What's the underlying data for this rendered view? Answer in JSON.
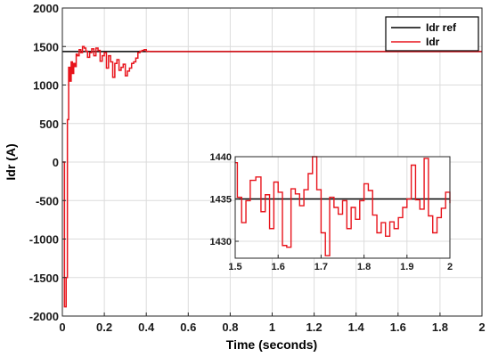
{
  "chart_data": {
    "type": "line",
    "xlabel": "Time (seconds)",
    "ylabel": "Idr (A)",
    "xlim": [
      0,
      2
    ],
    "ylim": [
      -2000,
      2000
    ],
    "xticks": [
      0,
      0.2,
      0.4,
      0.6,
      0.8,
      1,
      1.2,
      1.4,
      1.6,
      1.8,
      2
    ],
    "xtick_labels": [
      "0",
      "0.2",
      "0.4",
      "0.6",
      "0.8",
      "1",
      "1.2",
      "1.4",
      "1.6",
      "1.8",
      "2"
    ],
    "yticks": [
      -2000,
      -1500,
      -1000,
      -500,
      0,
      500,
      1000,
      1500,
      2000
    ],
    "ytick_labels": [
      "-2000",
      "-1500",
      "-1000",
      "-500",
      "0",
      "500",
      "1000",
      "1500",
      "2000"
    ],
    "grid": true,
    "legend": "top-right",
    "series": [
      {
        "name": "Idr ref",
        "color": "#000000",
        "x": [
          0,
          2
        ],
        "y": [
          1435,
          1435
        ]
      },
      {
        "name": "Idr",
        "color": "#e8141c",
        "step": true,
        "x": [
          0,
          0.01,
          0.018,
          0.024,
          0.03,
          0.036,
          0.042,
          0.048,
          0.054,
          0.06,
          0.066,
          0.072,
          0.08,
          0.088,
          0.096,
          0.104,
          0.112,
          0.12,
          0.13,
          0.14,
          0.15,
          0.16,
          0.17,
          0.18,
          0.19,
          0.2,
          0.21,
          0.22,
          0.23,
          0.24,
          0.25,
          0.26,
          0.27,
          0.28,
          0.29,
          0.3,
          0.31,
          0.32,
          0.33,
          0.34,
          0.35,
          0.36,
          0.37,
          0.38,
          0.39,
          0.4,
          0.41,
          0.42,
          2
        ],
        "y": [
          0,
          -1880,
          -1500,
          550,
          1230,
          1050,
          1300,
          1150,
          1280,
          1240,
          1400,
          1380,
          1460,
          1420,
          1500,
          1480,
          1440,
          1360,
          1420,
          1470,
          1380,
          1480,
          1450,
          1310,
          1380,
          1420,
          1220,
          1380,
          1300,
          1100,
          1280,
          1330,
          1190,
          1230,
          1270,
          1120,
          1180,
          1220,
          1280,
          1300,
          1350,
          1420,
          1440,
          1450,
          1460,
          1438,
          1436,
          1435,
          1435
        ]
      }
    ],
    "inset": {
      "xlim": [
        1.5,
        2
      ],
      "ylim": [
        1428,
        1440
      ],
      "xticks": [
        1.5,
        1.6,
        1.7,
        1.8,
        1.9,
        2
      ],
      "xtick_labels": [
        "1.5",
        "1.6",
        "1.7",
        "1.8",
        "1.9",
        "2"
      ],
      "yticks": [
        1430,
        1435,
        1440
      ],
      "ytick_labels": [
        "1430",
        "1435",
        "1440"
      ],
      "series": [
        {
          "name": "Idr ref",
          "color": "#000000",
          "x": [
            1.5,
            2
          ],
          "y": [
            1435,
            1435
          ]
        },
        {
          "name": "Idr",
          "color": "#e8141c",
          "step": true,
          "x": [
            1.5,
            1.505,
            1.515,
            1.525,
            1.535,
            1.548,
            1.56,
            1.57,
            1.58,
            1.59,
            1.6,
            1.61,
            1.62,
            1.63,
            1.64,
            1.65,
            1.66,
            1.67,
            1.68,
            1.69,
            1.7,
            1.71,
            1.72,
            1.73,
            1.74,
            1.75,
            1.76,
            1.77,
            1.78,
            1.79,
            1.8,
            1.81,
            1.82,
            1.83,
            1.84,
            1.85,
            1.86,
            1.87,
            1.88,
            1.89,
            1.9,
            1.91,
            1.92,
            1.93,
            1.94,
            1.95,
            1.96,
            1.97,
            1.98,
            1.99,
            2.0,
            2.005
          ],
          "y": [
            1439.3,
            1435.2,
            1432.2,
            1434.8,
            1437.2,
            1437.6,
            1433.5,
            1435.5,
            1431.5,
            1437.0,
            1435.8,
            1429.5,
            1429.3,
            1436.2,
            1435.6,
            1434.2,
            1436.1,
            1438.0,
            1440.0,
            1436.1,
            1431.0,
            1428.3,
            1435.2,
            1434.0,
            1433.2,
            1434.8,
            1431.5,
            1434.0,
            1432.6,
            1434.8,
            1436.8,
            1436.0,
            1433.1,
            1431.0,
            1432.2,
            1430.6,
            1432.3,
            1431.5,
            1432.8,
            1434.0,
            1435.0,
            1439.0,
            1434.9,
            1433.8,
            1439.8,
            1433.0,
            1431.0,
            1432.8,
            1433.9,
            1435.8,
            1435.2,
            1434.5
          ]
        }
      ]
    }
  }
}
